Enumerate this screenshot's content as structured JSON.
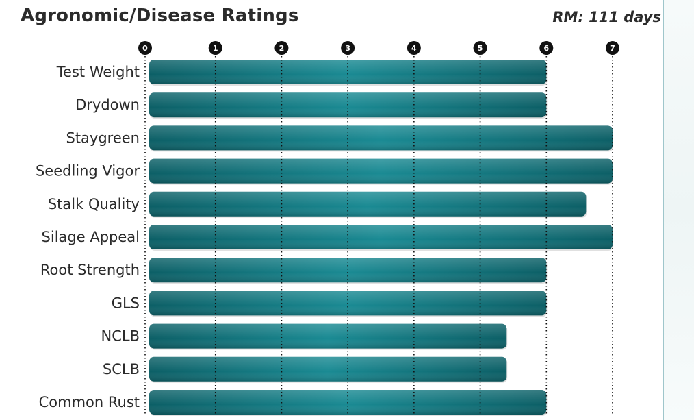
{
  "title": "Agronomic/Disease Ratings",
  "subtitle": "RM: 111 days",
  "colors": {
    "bar_dark": "#0c5f66",
    "bar_light": "#1a8a93",
    "tick_circle": "#111111",
    "text": "#2b2b2b"
  },
  "chart_data": {
    "type": "bar",
    "orientation": "horizontal",
    "categories": [
      "Test Weight",
      "Drydown",
      "Staygreen",
      "Seedling Vigor",
      "Stalk Quality",
      "Silage Appeal",
      "Root Strength",
      "GLS",
      "NCLB",
      "SCLB",
      "Common Rust"
    ],
    "values": [
      6,
      6,
      7,
      7,
      6.6,
      7,
      6,
      6,
      5.4,
      5.4,
      6
    ],
    "xlim": [
      0,
      7
    ],
    "xticks": [
      "0",
      "1",
      "2",
      "3",
      "4",
      "5",
      "6",
      "7"
    ],
    "grid": true
  }
}
